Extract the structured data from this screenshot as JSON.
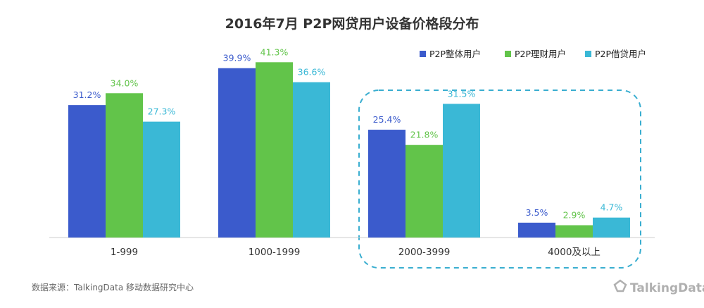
{
  "chart_data": {
    "type": "bar",
    "title": "2016年7月  P2P网贷用户设备价格段分布",
    "categories": [
      "1-999",
      "1000-1999",
      "2000-3999",
      "4000及以上"
    ],
    "series": [
      {
        "name": "P2P整体用户",
        "values": [
          31.2,
          39.9,
          25.4,
          3.5
        ]
      },
      {
        "name": "P2P理财用户",
        "values": [
          34.0,
          41.3,
          21.8,
          2.9
        ]
      },
      {
        "name": "P2P借贷用户",
        "values": [
          27.3,
          36.6,
          31.5,
          4.7
        ]
      }
    ],
    "value_format": "percent_1dp",
    "ylim": [
      0,
      45
    ],
    "grid": false,
    "legend_position": "top-right",
    "highlight_categories": [
      "2000-3999",
      "4000及以上"
    ]
  },
  "source_note": "数据来源：TalkingData 移动数据研究中心",
  "logo_text": "TalkingData",
  "colors": {
    "series": [
      "#3b5bcc",
      "#62c44a",
      "#3ab8d6"
    ],
    "highlight_border": "#3aaed0",
    "title": "#333333",
    "axis_text": "#333333",
    "source_text": "#666666",
    "logo": "#b0b0b0"
  }
}
